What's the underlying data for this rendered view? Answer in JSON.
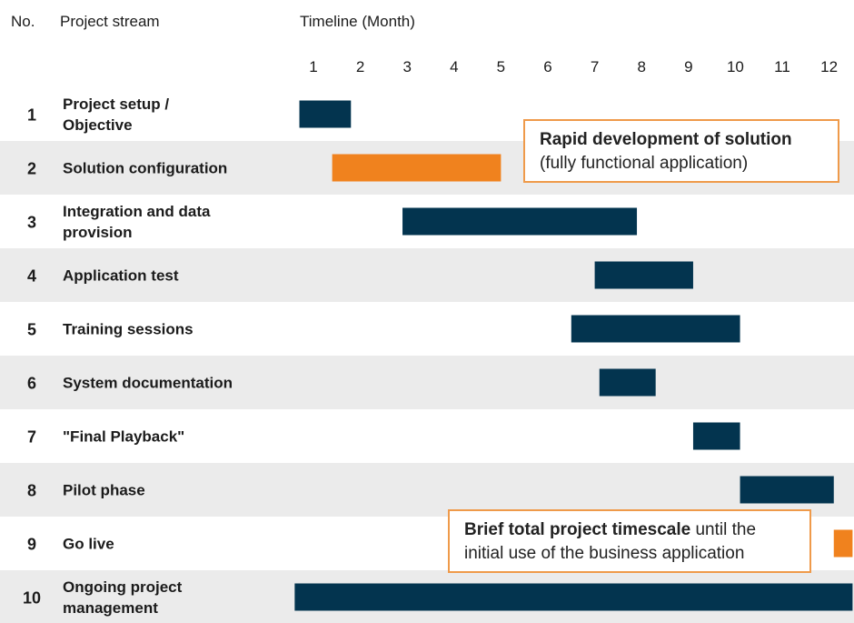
{
  "chart_data": {
    "type": "gantt",
    "headers": {
      "no": "No.",
      "stream": "Project stream",
      "timeline": "Timeline (Month)"
    },
    "months": [
      "1",
      "2",
      "3",
      "4",
      "5",
      "6",
      "7",
      "8",
      "9",
      "10",
      "11",
      "12"
    ],
    "xlim": [
      0.5,
      12.5
    ],
    "colors": {
      "primary": "#03344f",
      "highlight": "#f0821e",
      "stripe": "#ebebeb",
      "callout_border": "#ef9a4a"
    },
    "rows": [
      {
        "no": "1",
        "label": "Project setup / Objective",
        "start": 0.7,
        "end": 1.8,
        "color": "primary"
      },
      {
        "no": "2",
        "label": "Solution configuration",
        "start": 1.4,
        "end": 5.0,
        "color": "highlight"
      },
      {
        "no": "3",
        "label": "Integration and data provision",
        "start": 2.9,
        "end": 7.9,
        "color": "primary"
      },
      {
        "no": "4",
        "label": "Application test",
        "start": 7.0,
        "end": 9.1,
        "color": "primary"
      },
      {
        "no": "5",
        "label": "Training sessions",
        "start": 6.5,
        "end": 10.1,
        "color": "primary"
      },
      {
        "no": "6",
        "label": "System documentation",
        "start": 7.1,
        "end": 8.3,
        "color": "primary"
      },
      {
        "no": "7",
        "label": "\"Final Playback\"",
        "start": 9.1,
        "end": 10.1,
        "color": "primary"
      },
      {
        "no": "8",
        "label": "Pilot phase",
        "start": 10.1,
        "end": 12.1,
        "color": "primary"
      },
      {
        "no": "9",
        "label": "Go live",
        "start": 12.1,
        "end": 12.5,
        "color": "highlight"
      },
      {
        "no": "10",
        "label": "Ongoing project management",
        "start": 0.6,
        "end": 12.5,
        "color": "primary"
      }
    ],
    "annotations": [
      {
        "bold": "Rapid development of solution",
        "text": "(fully functional application)"
      },
      {
        "bold": "Brief total project timescale",
        "text": " until the initial use of the business application"
      }
    ]
  }
}
